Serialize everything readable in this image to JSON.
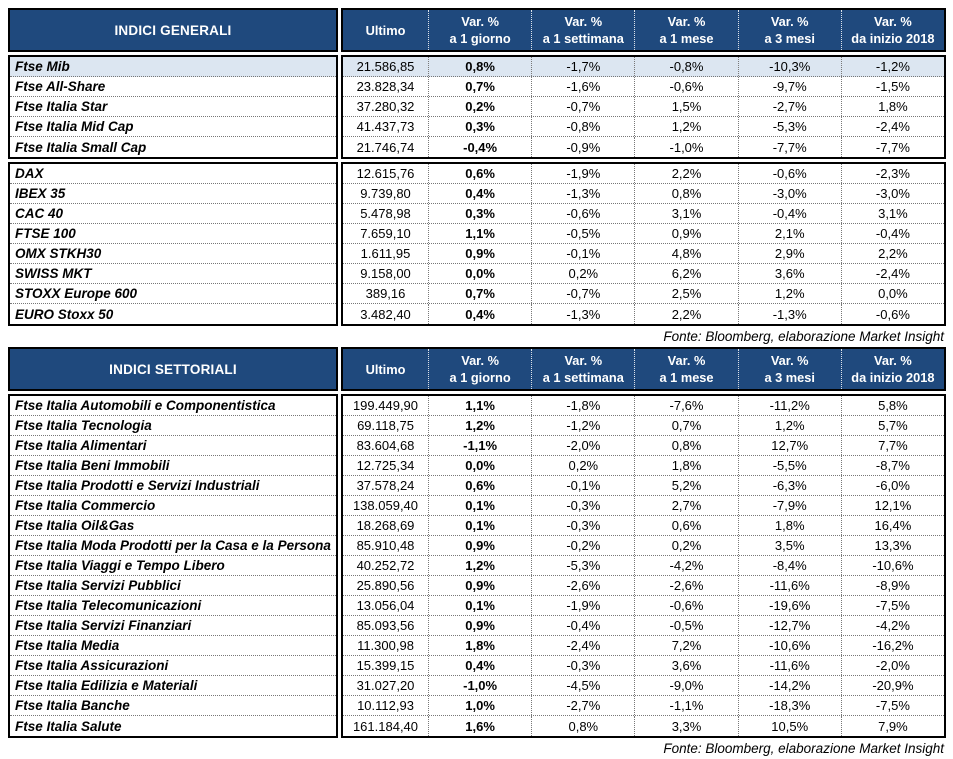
{
  "colors": {
    "header_bg": "#1F497D",
    "highlight_row_bg": "#DCE6F1",
    "border": "#000000"
  },
  "tables": [
    {
      "title": "INDICI GENERALI",
      "ultimo_header": "Ultimo",
      "var_headers": [
        {
          "l1": "Var. %",
          "l2": "a 1 giorno"
        },
        {
          "l1": "Var. %",
          "l2": "a 1 settimana"
        },
        {
          "l1": "Var. %",
          "l2": "a 1 mese"
        },
        {
          "l1": "Var. %",
          "l2": "a 3 mesi"
        },
        {
          "l1": "Var. %",
          "l2": "da inizio 2018"
        }
      ],
      "groups": [
        {
          "rows": [
            {
              "name": "Ftse Mib",
              "ultimo": "21.586,85",
              "var_1g": "0,8%",
              "var_1s": "-1,7%",
              "var_1m": "-0,8%",
              "var_3m": "-10,3%",
              "var_ytd": "-1,2%"
            },
            {
              "name": "Ftse All-Share",
              "ultimo": "23.828,34",
              "var_1g": "0,7%",
              "var_1s": "-1,6%",
              "var_1m": "-0,6%",
              "var_3m": "-9,7%",
              "var_ytd": "-1,5%"
            },
            {
              "name": "Ftse Italia Star",
              "ultimo": "37.280,32",
              "var_1g": "0,2%",
              "var_1s": "-0,7%",
              "var_1m": "1,5%",
              "var_3m": "-2,7%",
              "var_ytd": "1,8%"
            },
            {
              "name": "Ftse Italia Mid Cap",
              "ultimo": "41.437,73",
              "var_1g": "0,3%",
              "var_1s": "-0,8%",
              "var_1m": "1,2%",
              "var_3m": "-5,3%",
              "var_ytd": "-2,4%"
            },
            {
              "name": "Ftse Italia Small Cap",
              "ultimo": "21.746,74",
              "var_1g": "-0,4%",
              "var_1s": "-0,9%",
              "var_1m": "-1,0%",
              "var_3m": "-7,7%",
              "var_ytd": "-7,7%"
            }
          ]
        },
        {
          "rows": [
            {
              "name": "DAX",
              "ultimo": "12.615,76",
              "var_1g": "0,6%",
              "var_1s": "-1,9%",
              "var_1m": "2,2%",
              "var_3m": "-0,6%",
              "var_ytd": "-2,3%"
            },
            {
              "name": "IBEX 35",
              "ultimo": "9.739,80",
              "var_1g": "0,4%",
              "var_1s": "-1,3%",
              "var_1m": "0,8%",
              "var_3m": "-3,0%",
              "var_ytd": "-3,0%"
            },
            {
              "name": "CAC 40",
              "ultimo": "5.478,98",
              "var_1g": "0,3%",
              "var_1s": "-0,6%",
              "var_1m": "3,1%",
              "var_3m": "-0,4%",
              "var_ytd": "3,1%"
            },
            {
              "name": "FTSE 100",
              "ultimo": "7.659,10",
              "var_1g": "1,1%",
              "var_1s": "-0,5%",
              "var_1m": "0,9%",
              "var_3m": "2,1%",
              "var_ytd": "-0,4%"
            },
            {
              "name": "OMX STKH30",
              "ultimo": "1.611,95",
              "var_1g": "0,9%",
              "var_1s": "-0,1%",
              "var_1m": "4,8%",
              "var_3m": "2,9%",
              "var_ytd": "2,2%"
            },
            {
              "name": "SWISS MKT",
              "ultimo": "9.158,00",
              "var_1g": "0,0%",
              "var_1s": "0,2%",
              "var_1m": "6,2%",
              "var_3m": "3,6%",
              "var_ytd": "-2,4%"
            },
            {
              "name": "STOXX Europe 600",
              "ultimo": "389,16",
              "var_1g": "0,7%",
              "var_1s": "-0,7%",
              "var_1m": "2,5%",
              "var_3m": "1,2%",
              "var_ytd": "0,0%"
            },
            {
              "name": "EURO Stoxx 50",
              "ultimo": "3.482,40",
              "var_1g": "0,4%",
              "var_1s": "-1,3%",
              "var_1m": "2,2%",
              "var_3m": "-1,3%",
              "var_ytd": "-0,6%"
            }
          ]
        }
      ],
      "fonte": "Fonte: Bloomberg, elaborazione Market Insight"
    },
    {
      "title": "INDICI SETTORIALI",
      "ultimo_header": "Ultimo",
      "var_headers": [
        {
          "l1": "Var. %",
          "l2": "a 1 giorno"
        },
        {
          "l1": "Var. %",
          "l2": "a 1 settimana"
        },
        {
          "l1": "Var. %",
          "l2": "a 1 mese"
        },
        {
          "l1": "Var. %",
          "l2": "a 3 mesi"
        },
        {
          "l1": "Var. %",
          "l2": "da inizio 2018"
        }
      ],
      "groups": [
        {
          "rows": [
            {
              "name": "Ftse Italia Automobili e Componentistica",
              "ultimo": "199.449,90",
              "var_1g": "1,1%",
              "var_1s": "-1,8%",
              "var_1m": "-7,6%",
              "var_3m": "-11,2%",
              "var_ytd": "5,8%"
            },
            {
              "name": "Ftse Italia Tecnologia",
              "ultimo": "69.118,75",
              "var_1g": "1,2%",
              "var_1s": "-1,2%",
              "var_1m": "0,7%",
              "var_3m": "1,2%",
              "var_ytd": "5,7%"
            },
            {
              "name": "Ftse Italia Alimentari",
              "ultimo": "83.604,68",
              "var_1g": "-1,1%",
              "var_1s": "-2,0%",
              "var_1m": "0,8%",
              "var_3m": "12,7%",
              "var_ytd": "7,7%"
            },
            {
              "name": "Ftse Italia Beni Immobili",
              "ultimo": "12.725,34",
              "var_1g": "0,0%",
              "var_1s": "0,2%",
              "var_1m": "1,8%",
              "var_3m": "-5,5%",
              "var_ytd": "-8,7%"
            },
            {
              "name": "Ftse Italia Prodotti e Servizi Industriali",
              "ultimo": "37.578,24",
              "var_1g": "0,6%",
              "var_1s": "-0,1%",
              "var_1m": "5,2%",
              "var_3m": "-6,3%",
              "var_ytd": "-6,0%"
            },
            {
              "name": "Ftse Italia Commercio",
              "ultimo": "138.059,40",
              "var_1g": "0,1%",
              "var_1s": "-0,3%",
              "var_1m": "2,7%",
              "var_3m": "-7,9%",
              "var_ytd": "12,1%"
            },
            {
              "name": "Ftse Italia Oil&Gas",
              "ultimo": "18.268,69",
              "var_1g": "0,1%",
              "var_1s": "-0,3%",
              "var_1m": "0,6%",
              "var_3m": "1,8%",
              "var_ytd": "16,4%"
            },
            {
              "name": "Ftse Italia Moda Prodotti per la Casa e la Persona",
              "ultimo": "85.910,48",
              "var_1g": "0,9%",
              "var_1s": "-0,2%",
              "var_1m": "0,2%",
              "var_3m": "3,5%",
              "var_ytd": "13,3%"
            },
            {
              "name": "Ftse Italia Viaggi e Tempo Libero",
              "ultimo": "40.252,72",
              "var_1g": "1,2%",
              "var_1s": "-5,3%",
              "var_1m": "-4,2%",
              "var_3m": "-8,4%",
              "var_ytd": "-10,6%"
            },
            {
              "name": "Ftse Italia Servizi Pubblici",
              "ultimo": "25.890,56",
              "var_1g": "0,9%",
              "var_1s": "-2,6%",
              "var_1m": "-2,6%",
              "var_3m": "-11,6%",
              "var_ytd": "-8,9%"
            },
            {
              "name": "Ftse Italia Telecomunicazioni",
              "ultimo": "13.056,04",
              "var_1g": "0,1%",
              "var_1s": "-1,9%",
              "var_1m": "-0,6%",
              "var_3m": "-19,6%",
              "var_ytd": "-7,5%"
            },
            {
              "name": "Ftse Italia Servizi Finanziari",
              "ultimo": "85.093,56",
              "var_1g": "0,9%",
              "var_1s": "-0,4%",
              "var_1m": "-0,5%",
              "var_3m": "-12,7%",
              "var_ytd": "-4,2%"
            },
            {
              "name": "Ftse Italia Media",
              "ultimo": "11.300,98",
              "var_1g": "1,8%",
              "var_1s": "-2,4%",
              "var_1m": "7,2%",
              "var_3m": "-10,6%",
              "var_ytd": "-16,2%"
            },
            {
              "name": "Ftse Italia Assicurazioni",
              "ultimo": "15.399,15",
              "var_1g": "0,4%",
              "var_1s": "-0,3%",
              "var_1m": "3,6%",
              "var_3m": "-11,6%",
              "var_ytd": "-2,0%"
            },
            {
              "name": "Ftse Italia Edilizia e Materiali",
              "ultimo": "31.027,20",
              "var_1g": "-1,0%",
              "var_1s": "-4,5%",
              "var_1m": "-9,0%",
              "var_3m": "-14,2%",
              "var_ytd": "-20,9%"
            },
            {
              "name": "Ftse Italia Banche",
              "ultimo": "10.112,93",
              "var_1g": "1,0%",
              "var_1s": "-2,7%",
              "var_1m": "-1,1%",
              "var_3m": "-18,3%",
              "var_ytd": "-7,5%"
            },
            {
              "name": "Ftse Italia Salute",
              "ultimo": "161.184,40",
              "var_1g": "1,6%",
              "var_1s": "0,8%",
              "var_1m": "3,3%",
              "var_3m": "10,5%",
              "var_ytd": "7,9%"
            }
          ]
        }
      ],
      "fonte": "Fonte: Bloomberg, elaborazione Market Insight"
    }
  ]
}
